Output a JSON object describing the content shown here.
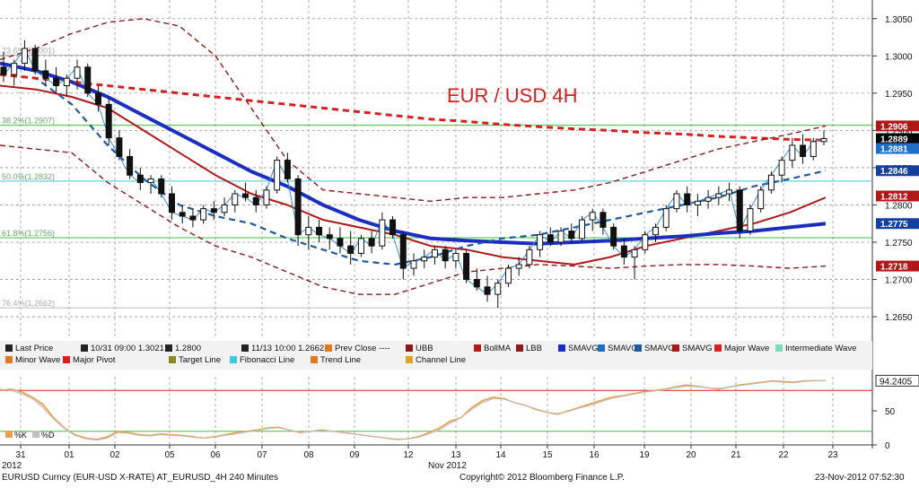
{
  "chart_data": {
    "type": "line",
    "title": "EUR / USD 4H",
    "x_axis": {
      "tick_labels": [
        "31",
        "01",
        "02",
        "05",
        "06",
        "07",
        "08",
        "09",
        "12",
        "13",
        "14",
        "15",
        "16",
        "19",
        "20",
        "21",
        "22",
        "23"
      ],
      "year_label": "2012",
      "month_label": "Nov 2012"
    },
    "y_axis": {
      "range": [
        1.262,
        1.3075
      ],
      "ticks": [
        "1.3050",
        "1.3000",
        "1.2950",
        "1.2900",
        "1.2850",
        "1.2800",
        "1.2750",
        "1.2700",
        "1.2650"
      ]
    },
    "price_labels": [
      {
        "text": "1.2906",
        "value": 1.2906,
        "color": "#b01818"
      },
      {
        "text": "1.2889",
        "value": 1.2889,
        "color": "#000000"
      },
      {
        "text": "1.2881",
        "value": 1.2881,
        "color": "#1e6ec8"
      },
      {
        "text": "1.2846",
        "value": 1.2846,
        "color": "#1440a0"
      },
      {
        "text": "1.2812",
        "value": 1.2812,
        "color": "#b01818"
      },
      {
        "text": "1.2775",
        "value": 1.2775,
        "color": "#1440a0"
      },
      {
        "text": "1.2718",
        "value": 1.2718,
        "color": "#b01818"
      }
    ],
    "fibonacci_levels": [
      {
        "label": "38.2%(1.2907)",
        "value": 1.2907,
        "color": "#3cc03c"
      },
      {
        "label": "50.0%(1.2832)",
        "value": 1.2832,
        "color": "#40c8d8"
      },
      {
        "label": "61.8%(1.2756)",
        "value": 1.2756,
        "color": "#3cc03c"
      },
      {
        "label": "76.4%(1.2662)",
        "value": 1.2662,
        "color": "#bbbbbb"
      },
      {
        "label": "23.6%(1.3001)",
        "value": 1.3001,
        "color": "#bbbbbb"
      }
    ],
    "series": [
      {
        "name": "Last Price",
        "kind": "candlestick",
        "ohlc": [
          [
            1.2985,
            1.3005,
            1.2965,
            1.2975
          ],
          [
            1.2975,
            1.2995,
            1.296,
            1.299
          ],
          [
            1.299,
            1.3021,
            1.298,
            1.301
          ],
          [
            1.301,
            1.3015,
            1.2975,
            1.298
          ],
          [
            1.298,
            1.2995,
            1.296,
            1.297
          ],
          [
            1.297,
            1.2985,
            1.295,
            1.296
          ],
          [
            1.296,
            1.2975,
            1.2945,
            1.297
          ],
          [
            1.297,
            1.2995,
            1.2955,
            1.2985
          ],
          [
            1.2985,
            1.299,
            1.2945,
            1.295
          ],
          [
            1.295,
            1.296,
            1.2925,
            1.2935
          ],
          [
            1.2935,
            1.2945,
            1.288,
            1.289
          ],
          [
            1.289,
            1.29,
            1.286,
            1.2865
          ],
          [
            1.2865,
            1.2875,
            1.2835,
            1.284
          ],
          [
            1.284,
            1.285,
            1.282,
            1.283
          ],
          [
            1.283,
            1.284,
            1.2815,
            1.2835
          ],
          [
            1.2835,
            1.284,
            1.281,
            1.2815
          ],
          [
            1.2815,
            1.2825,
            1.278,
            1.279
          ],
          [
            1.279,
            1.28,
            1.2775,
            1.2785
          ],
          [
            1.2785,
            1.2795,
            1.277,
            1.278
          ],
          [
            1.278,
            1.28,
            1.2775,
            1.2795
          ],
          [
            1.2795,
            1.2805,
            1.278,
            1.279
          ],
          [
            1.279,
            1.281,
            1.2785,
            1.28
          ],
          [
            1.28,
            1.282,
            1.279,
            1.2815
          ],
          [
            1.2815,
            1.283,
            1.2805,
            1.281
          ],
          [
            1.281,
            1.282,
            1.279,
            1.28
          ],
          [
            1.28,
            1.2825,
            1.2795,
            1.282
          ],
          [
            1.282,
            1.2865,
            1.2815,
            1.286
          ],
          [
            1.286,
            1.287,
            1.283,
            1.2835
          ],
          [
            1.2835,
            1.284,
            1.2745,
            1.276
          ],
          [
            1.276,
            1.2785,
            1.274,
            1.277
          ],
          [
            1.277,
            1.278,
            1.275,
            1.276
          ],
          [
            1.276,
            1.277,
            1.274,
            1.2755
          ],
          [
            1.2755,
            1.277,
            1.2735,
            1.2745
          ],
          [
            1.2745,
            1.2765,
            1.272,
            1.2735
          ],
          [
            1.2735,
            1.276,
            1.273,
            1.2755
          ],
          [
            1.2755,
            1.2765,
            1.2735,
            1.2745
          ],
          [
            1.2745,
            1.279,
            1.274,
            1.278
          ],
          [
            1.278,
            1.2785,
            1.2755,
            1.276
          ],
          [
            1.276,
            1.2765,
            1.27,
            1.2715
          ],
          [
            1.2715,
            1.2735,
            1.2705,
            1.2725
          ],
          [
            1.2725,
            1.274,
            1.2715,
            1.273
          ],
          [
            1.273,
            1.2745,
            1.272,
            1.274
          ],
          [
            1.274,
            1.2745,
            1.2715,
            1.2725
          ],
          [
            1.2725,
            1.274,
            1.2715,
            1.2735
          ],
          [
            1.2735,
            1.274,
            1.2695,
            1.27
          ],
          [
            1.27,
            1.2715,
            1.2685,
            1.269
          ],
          [
            1.269,
            1.2705,
            1.267,
            1.268
          ],
          [
            1.268,
            1.27,
            1.2662,
            1.2695
          ],
          [
            1.2695,
            1.272,
            1.269,
            1.2715
          ],
          [
            1.2715,
            1.273,
            1.2705,
            1.272
          ],
          [
            1.272,
            1.2745,
            1.2715,
            1.274
          ],
          [
            1.274,
            1.2765,
            1.273,
            1.276
          ],
          [
            1.276,
            1.277,
            1.2745,
            1.275
          ],
          [
            1.275,
            1.277,
            1.2745,
            1.2765
          ],
          [
            1.2765,
            1.2775,
            1.275,
            1.2755
          ],
          [
            1.2755,
            1.2785,
            1.275,
            1.278
          ],
          [
            1.278,
            1.2795,
            1.2765,
            1.279
          ],
          [
            1.279,
            1.2795,
            1.276,
            1.277
          ],
          [
            1.277,
            1.2775,
            1.274,
            1.2745
          ],
          [
            1.2745,
            1.2755,
            1.272,
            1.273
          ],
          [
            1.273,
            1.2745,
            1.27,
            1.274
          ],
          [
            1.274,
            1.2765,
            1.2735,
            1.276
          ],
          [
            1.276,
            1.2775,
            1.275,
            1.277
          ],
          [
            1.277,
            1.28,
            1.2765,
            1.2795
          ],
          [
            1.2795,
            1.282,
            1.279,
            1.2815
          ],
          [
            1.2815,
            1.2825,
            1.279,
            1.28
          ],
          [
            1.28,
            1.2815,
            1.2785,
            1.2805
          ],
          [
            1.2805,
            1.282,
            1.2795,
            1.281
          ],
          [
            1.281,
            1.2825,
            1.28,
            1.2815
          ],
          [
            1.2815,
            1.283,
            1.2805,
            1.282
          ],
          [
            1.282,
            1.2825,
            1.2755,
            1.2765
          ],
          [
            1.2765,
            1.28,
            1.276,
            1.2795
          ],
          [
            1.2795,
            1.2825,
            1.279,
            1.282
          ],
          [
            1.282,
            1.2845,
            1.2815,
            1.284
          ],
          [
            1.284,
            1.2865,
            1.283,
            1.286
          ],
          [
            1.286,
            1.289,
            1.285,
            1.288
          ],
          [
            1.288,
            1.2895,
            1.2855,
            1.2865
          ],
          [
            1.2865,
            1.289,
            1.286,
            1.2885
          ],
          [
            1.2885,
            1.29,
            1.288,
            1.2889
          ]
        ]
      },
      {
        "name": "SMAVG",
        "kind": "line",
        "color": "#b01818",
        "values": [
          1.296,
          1.2955,
          1.2945,
          1.293,
          1.29,
          1.287,
          1.284,
          1.2815,
          1.28,
          1.278,
          1.277,
          1.276,
          1.2745,
          1.274,
          1.273,
          1.2725,
          1.272,
          1.273,
          1.2745,
          1.2755,
          1.2765,
          1.2775,
          1.279,
          1.281
        ]
      },
      {
        "name": "SMAVG",
        "kind": "line",
        "color": "#1a2fc0",
        "values": [
          1.299,
          1.298,
          1.2965,
          1.2945,
          1.292,
          1.2895,
          1.287,
          1.2845,
          1.2825,
          1.28,
          1.278,
          1.2765,
          1.2755,
          1.2752,
          1.275,
          1.2748,
          1.275,
          1.2752,
          1.2755,
          1.2758,
          1.2762,
          1.2765,
          1.277,
          1.2775
        ]
      },
      {
        "name": "SMAVG",
        "kind": "line",
        "color": "#1f5aa0",
        "values": [
          1.2975,
          1.297,
          1.2935,
          1.288,
          1.2835,
          1.28,
          1.2785,
          1.2775,
          1.2755,
          1.274,
          1.2725,
          1.272,
          1.273,
          1.2745,
          1.2755,
          1.276,
          1.277,
          1.278,
          1.279,
          1.28,
          1.281,
          1.2825,
          1.2835,
          1.2846
        ]
      },
      {
        "name": "Major Wave",
        "kind": "line",
        "color": "#d62020",
        "values": [
          1.2975,
          1.297,
          1.2965,
          1.296,
          1.2955,
          1.295,
          1.2945,
          1.294,
          1.2935,
          1.293,
          1.2925,
          1.292,
          1.2915,
          1.2912,
          1.2908,
          1.2905,
          1.2902,
          1.29,
          1.2897,
          1.2895,
          1.2892,
          1.289,
          1.2888,
          1.2887
        ]
      },
      {
        "name": "UBB",
        "kind": "line",
        "color": "#8b1a1a",
        "values": [
          1.2995,
          1.301,
          1.303,
          1.3045,
          1.305,
          1.304,
          1.3,
          1.293,
          1.286,
          1.282,
          1.2815,
          1.281,
          1.2805,
          1.281,
          1.281,
          1.2815,
          1.282,
          1.283,
          1.2845,
          1.286,
          1.2875,
          1.2885,
          1.2895,
          1.2906
        ]
      },
      {
        "name": "LBB",
        "kind": "line",
        "color": "#8b1a1a",
        "values": [
          1.288,
          1.2875,
          1.287,
          1.283,
          1.28,
          1.277,
          1.2745,
          1.273,
          1.271,
          1.269,
          1.268,
          1.268,
          1.2695,
          1.271,
          1.2715,
          1.272,
          1.2718,
          1.2715,
          1.2718,
          1.272,
          1.272,
          1.2718,
          1.2715,
          1.2718
        ]
      }
    ],
    "legend": [
      {
        "label": "Last Price",
        "color": "#222222"
      },
      {
        "label": "10/31 09:00 1.3021",
        "color": "#222222"
      },
      {
        "label": "1.2800",
        "color": "#222222"
      },
      {
        "label": "11/13 10:00 1.2662",
        "color": "#222222"
      },
      {
        "label": "Prev Close ----",
        "color": "#e07a20"
      },
      {
        "label": "UBB",
        "color": "#8b1a1a"
      },
      {
        "label": "BollMA",
        "color": "#b01818"
      },
      {
        "label": "LBB",
        "color": "#8b1a1a"
      },
      {
        "label": "SMAVG",
        "color": "#1a2fc0"
      },
      {
        "label": "SMAVG",
        "color": "#1e6ec8"
      },
      {
        "label": "SMAVG",
        "color": "#1f5aa0"
      },
      {
        "label": "SMAVG",
        "color": "#b01818"
      },
      {
        "label": "Major Wave",
        "color": "#d62020"
      },
      {
        "label": "Intermediate Wave",
        "color": "#7ed8c0"
      },
      {
        "label": "Minor Wave",
        "color": "#e07a20"
      },
      {
        "label": "Major Pivot",
        "color": "#d62020"
      },
      {
        "label": "Target Line",
        "color": "#8a8a20"
      },
      {
        "label": "Fibonacci Line",
        "color": "#40c8d8"
      },
      {
        "label": "Trend Line",
        "color": "#e07a20"
      },
      {
        "label": "Channel Line",
        "color": "#e0a020"
      }
    ],
    "oscillator": {
      "value_label": "94.2405",
      "ticks": [
        "50",
        "0"
      ],
      "levels": [
        80,
        20
      ],
      "legend": [
        "%K",
        "%D"
      ],
      "range": [
        0,
        100
      ],
      "k": [
        80,
        82,
        78,
        70,
        60,
        40,
        25,
        15,
        10,
        8,
        12,
        20,
        18,
        15,
        14,
        16,
        15,
        14,
        12,
        10,
        12,
        15,
        18,
        20,
        22,
        25,
        26,
        22,
        18,
        20,
        22,
        20,
        18,
        16,
        14,
        12,
        10,
        8,
        9,
        12,
        18,
        25,
        35,
        40,
        55,
        65,
        70,
        68,
        62,
        58,
        52,
        48,
        45,
        50,
        55,
        60,
        65,
        70,
        72,
        75,
        78,
        80,
        82,
        85,
        88,
        86,
        84,
        82,
        85,
        88,
        90,
        92,
        94,
        93,
        92,
        94,
        94.2,
        94.2
      ],
      "d": [
        82,
        80,
        75,
        68,
        55,
        38,
        24,
        14,
        9,
        7,
        10,
        18,
        17,
        14,
        13,
        15,
        14,
        13,
        11,
        10,
        11,
        14,
        16,
        19,
        21,
        24,
        25,
        22,
        19,
        20,
        21,
        20,
        18,
        16,
        14,
        12,
        10,
        9,
        9,
        11,
        16,
        22,
        32,
        40,
        52,
        62,
        68,
        67,
        62,
        58,
        53,
        48,
        46,
        49,
        54,
        58,
        63,
        68,
        71,
        74,
        77,
        79,
        81,
        84,
        86,
        85,
        84,
        83,
        85,
        87,
        89,
        91,
        93,
        92,
        91,
        93,
        94,
        94.2
      ]
    },
    "grid": true
  },
  "footer": {
    "left": "EURUSD Curncy (EUR-USD X-RATE) AT_EURUSD_4H  240 Minutes",
    "center": "Copyright© 2012 Bloomberg Finance L.P.",
    "right": "23-Nov-2012 07:52:30"
  }
}
